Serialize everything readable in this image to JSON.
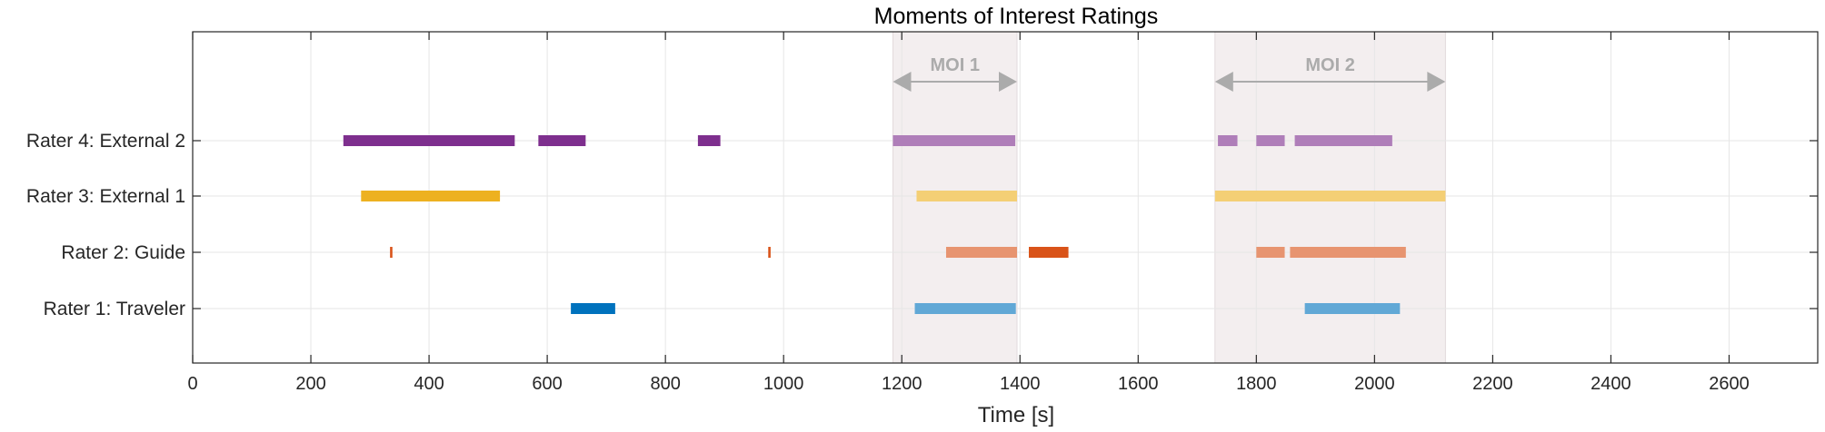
{
  "chart_data": {
    "type": "timeline",
    "title": "Moments of Interest Ratings",
    "xlabel": "Time [s]",
    "xlim": [
      0,
      2750
    ],
    "xticks": [
      0,
      200,
      400,
      600,
      800,
      1000,
      1200,
      1400,
      1600,
      1800,
      2000,
      2200,
      2400,
      2600
    ],
    "grid": true,
    "rows": [
      {
        "label": "Rater 1: Traveler",
        "color": "#0072bd",
        "intervals": [
          [
            640,
            715
          ]
        ],
        "intervals_in_moi": [
          [
            1222,
            1393
          ],
          [
            1882,
            2043
          ]
        ]
      },
      {
        "label": "Rater 2: Guide",
        "color": "#d95319",
        "intervals": [
          [
            334,
            338
          ],
          [
            974,
            978
          ],
          [
            1415,
            1482
          ]
        ],
        "intervals_in_moi": [
          [
            1275,
            1395
          ],
          [
            1800,
            1848
          ],
          [
            1857,
            2053
          ]
        ]
      },
      {
        "label": "Rater 3: External 1",
        "color": "#edb120",
        "intervals": [
          [
            285,
            520
          ]
        ],
        "intervals_in_moi": [
          [
            1225,
            1395
          ],
          [
            1730,
            2120
          ]
        ]
      },
      {
        "label": "Rater 4: External 2",
        "color": "#7e2f8e",
        "intervals": [
          [
            255,
            545
          ],
          [
            585,
            665
          ],
          [
            855,
            893
          ]
        ],
        "intervals_in_moi": [
          [
            1185,
            1392
          ],
          [
            1735,
            1768
          ],
          [
            1800,
            1848
          ],
          [
            1865,
            2030
          ]
        ]
      }
    ],
    "regions": [
      {
        "label": "MOI 1",
        "start": 1185,
        "end": 1395
      },
      {
        "label": "MOI 2",
        "start": 1730,
        "end": 2120
      }
    ],
    "region_color": "#f3eeef",
    "annotation_color": "#ababab"
  }
}
